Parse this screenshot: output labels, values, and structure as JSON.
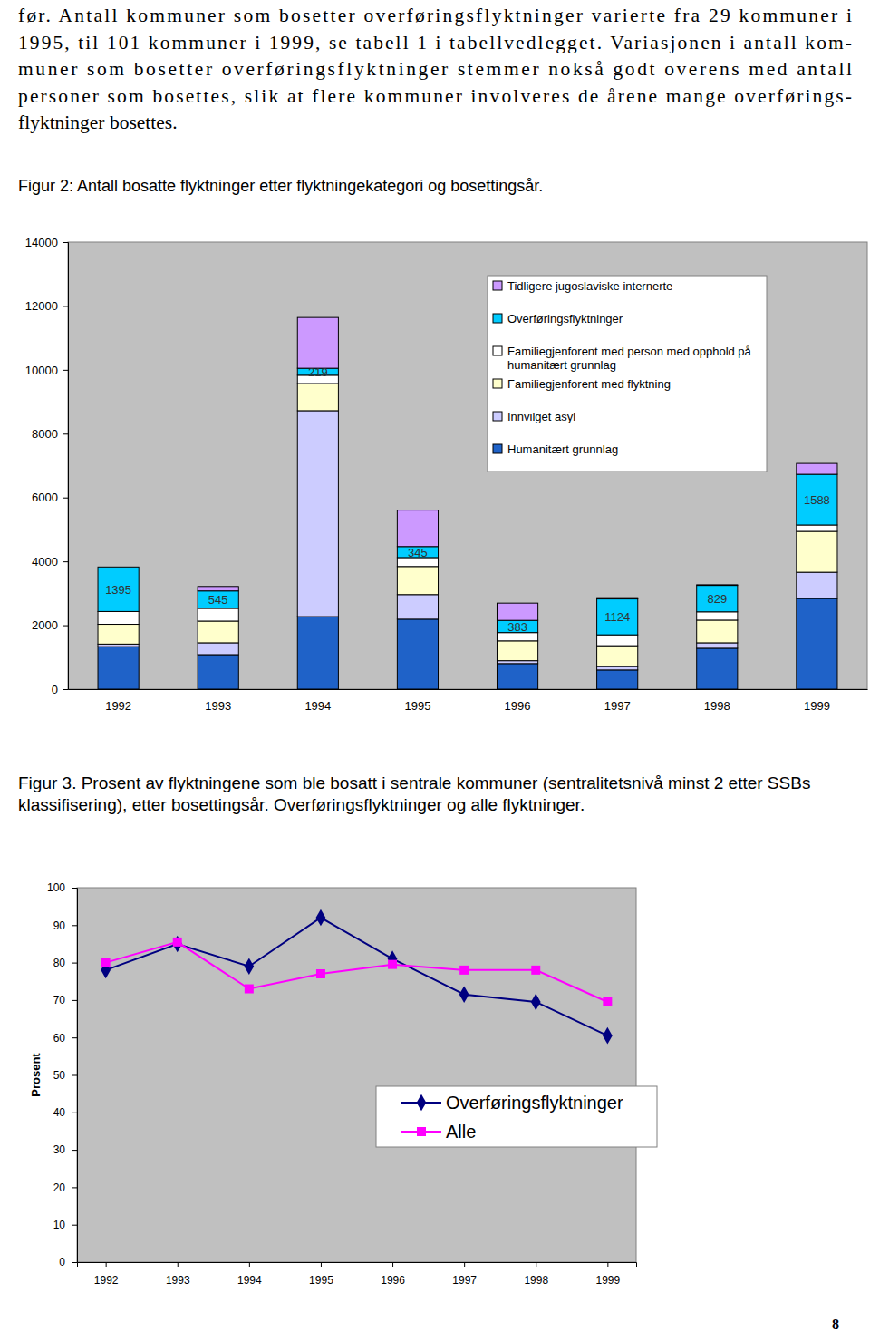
{
  "document": {
    "paragraph": [
      "før. Antall kommuner som bosetter overføringsflyktninger varierte fra 29 kommuner i",
      "1995, til 101 kommuner i 1999, se tabell 1 i tabellvedlegget. Variasjonen i antall kom-",
      "muner som bosetter overføringsflyktninger stemmer nokså godt overens med antall",
      "personer som bosettes, slik at flere kommuner involveres de årene mange overførings-",
      "flyktninger bosettes."
    ],
    "page_number": "8"
  },
  "chart_data": [
    {
      "type": "bar",
      "stacked": true,
      "title": "Figur 2: Antall bosatte flyktninger etter flyktningekategori og bosettingsår.",
      "categories": [
        "1992",
        "1993",
        "1994",
        "1995",
        "1996",
        "1997",
        "1998",
        "1999"
      ],
      "ylim": [
        0,
        14000
      ],
      "yticks": [
        0,
        2000,
        4000,
        6000,
        8000,
        10000,
        12000,
        14000
      ],
      "grid": false,
      "legend": "top-right",
      "series": [
        {
          "name": "Humanitært grunnlag",
          "color": "#1f62c8",
          "values": [
            1330,
            1080,
            2270,
            2190,
            800,
            600,
            1280,
            2840
          ]
        },
        {
          "name": "Innvilget asyl",
          "color": "#ccccff",
          "values": [
            80,
            370,
            6450,
            770,
            90,
            110,
            170,
            820
          ]
        },
        {
          "name": "Familiegjenforent med flyktning",
          "color": "#ffffcc",
          "values": [
            620,
            680,
            850,
            880,
            620,
            650,
            710,
            1280
          ]
        },
        {
          "name": "Familiegjenforent med person med opphold på humanitært grunnlag",
          "color": "#ffffff",
          "values": [
            400,
            400,
            260,
            280,
            260,
            340,
            260,
            200
          ]
        },
        {
          "name": "Overføringsflyktninger",
          "color": "#00ccff",
          "data_labels": true,
          "values": [
            1395,
            545,
            219,
            345,
            383,
            1124,
            829,
            1588
          ]
        },
        {
          "name": "Tidligere jugoslaviske internerte",
          "color": "#cc99ff",
          "values": [
            0,
            140,
            1590,
            1140,
            540,
            40,
            20,
            340
          ]
        }
      ]
    },
    {
      "type": "line",
      "title": "Figur 3. Prosent av flyktningene som ble bosatt i sentrale kommuner (sentralitetsnivå minst 2 etter SSBs klassifisering), etter bosettingsår. Overføringsflyktninger og alle flyktninger.",
      "y_label": "Prosent",
      "categories": [
        "1992",
        "1993",
        "1994",
        "1995",
        "1996",
        "1997",
        "1998",
        "1999"
      ],
      "ylim": [
        0,
        100
      ],
      "yticks": [
        0,
        10,
        20,
        30,
        40,
        50,
        60,
        70,
        80,
        90,
        100
      ],
      "grid": false,
      "legend": "bottom-right",
      "series": [
        {
          "name": "Overføringsflyktninger",
          "color": "#000080",
          "marker": "diamond",
          "line_style": "solid",
          "values": [
            78,
            85,
            79,
            92,
            81,
            71.5,
            69.5,
            60.5
          ]
        },
        {
          "name": "Alle",
          "color": "#ff00ff",
          "marker": "square",
          "line_style": "solid",
          "values": [
            80,
            85.5,
            73,
            77,
            79.5,
            78,
            78,
            69.5
          ]
        }
      ]
    }
  ]
}
